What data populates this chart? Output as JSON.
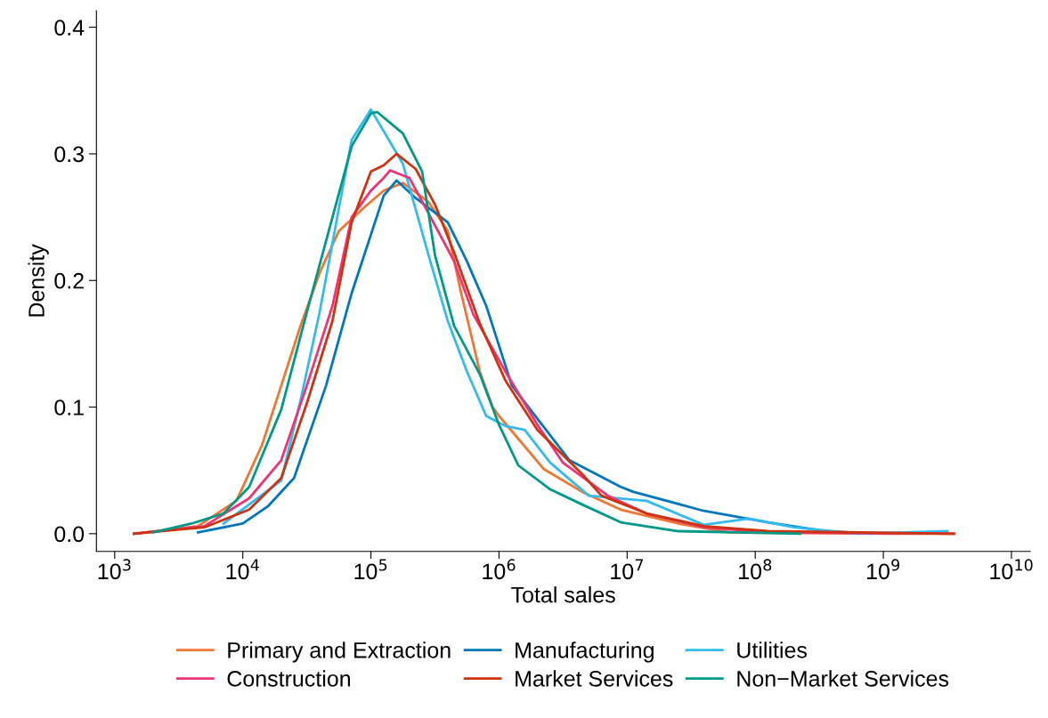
{
  "chart_data": {
    "type": "line",
    "xlabel": "Total sales",
    "ylabel": "Density",
    "log": "x",
    "xlim": [
      720,
      14000000000
    ],
    "ylim": [
      -0.014,
      0.413
    ],
    "xticks": [
      {
        "value": 1000,
        "label": "10$^{3}$"
      },
      {
        "value": 10000,
        "label": "10$^{4}$"
      },
      {
        "value": 100000,
        "label": "10$^{5}$"
      },
      {
        "value": 1000000,
        "label": "10$^{6}$"
      },
      {
        "value": 10000000,
        "label": "10$^{7}$"
      },
      {
        "value": 100000000,
        "label": "10$^{8}$"
      },
      {
        "value": 1000000000,
        "label": "10$^{9}$"
      },
      {
        "value": 10000000000,
        "label": "10$^{10}$"
      }
    ],
    "yticks": [
      {
        "value": 0,
        "label": "0.0"
      },
      0.1,
      0.2,
      0.3,
      0.4
    ],
    "grid": false,
    "legend": "bottom",
    "marker": "none",
    "line_style": "solid",
    "series": [
      {
        "name": "Primary and Extraction",
        "color": "#ee7733",
        "x": [
          1413,
          4467,
          8913,
          14130,
          19950,
          28180,
          39810,
          56230,
          89130,
          125900,
          177800,
          281800,
          398100,
          501200,
          707900,
          891300,
          1000000,
          2239000,
          4467000,
          8913000,
          25120000,
          63100000,
          1000000000,
          3548000000
        ],
        "values": [
          0,
          0.006,
          0.026,
          0.07,
          0.117,
          0.164,
          0.206,
          0.239,
          0.258,
          0.271,
          0.277,
          0.262,
          0.239,
          0.192,
          0.128,
          0.1,
          0.093,
          0.051,
          0.033,
          0.019,
          0.008,
          0.001,
          0,
          0
        ]
      },
      {
        "name": "Manufacturing",
        "color": "#0077bb",
        "x": [
          4467,
          10000,
          15850,
          25120,
          44670,
          70790,
          125900,
          158500,
          223900,
          398100,
          562300,
          794300,
          1259000,
          3548000,
          8913000,
          11220000,
          39810000,
          125900000,
          354800000,
          794300000
        ],
        "values": [
          0.001,
          0.008,
          0.022,
          0.044,
          0.117,
          0.19,
          0.267,
          0.279,
          0.265,
          0.246,
          0.215,
          0.18,
          0.117,
          0.058,
          0.037,
          0.033,
          0.018,
          0.009,
          0.002,
          0
        ]
      },
      {
        "name": "Utilities",
        "color": "#33bbee",
        "x": [
          7079,
          19950,
          28180,
          39810,
          56230,
          70790,
          100000,
          177800,
          281800,
          398100,
          562300,
          794300,
          1122000,
          1585000,
          2512000,
          5012000,
          14130000,
          39810000,
          89130000,
          199500000,
          631000000,
          3162000000
        ],
        "values": [
          0.008,
          0.042,
          0.105,
          0.175,
          0.257,
          0.311,
          0.335,
          0.292,
          0.22,
          0.168,
          0.128,
          0.093,
          0.085,
          0.082,
          0.056,
          0.03,
          0.026,
          0.007,
          0.012,
          0.005,
          0,
          0.002
        ]
      },
      {
        "name": "Construction",
        "color": "#ee3377",
        "x": [
          1413,
          5012,
          11220,
          19950,
          31620,
          50120,
          70790,
          100000,
          125900,
          141300,
          199500,
          281800,
          446700,
          631000,
          1122000,
          1995000,
          3162000,
          7079000,
          14130000,
          39810000,
          125900000,
          3548000000
        ],
        "values": [
          0,
          0.006,
          0.028,
          0.058,
          0.117,
          0.18,
          0.25,
          0.271,
          0.281,
          0.287,
          0.281,
          0.253,
          0.215,
          0.173,
          0.128,
          0.086,
          0.056,
          0.03,
          0.016,
          0.005,
          0.001,
          0
        ]
      },
      {
        "name": "Market Services",
        "color": "#cc3311",
        "x": [
          1413,
          5012,
          11220,
          19950,
          31620,
          50120,
          70790,
          100000,
          125900,
          158500,
          223900,
          316200,
          446700,
          707900,
          1122000,
          1995000,
          4467000,
          6310000,
          14130000,
          39810000,
          125900000,
          3548000000
        ],
        "values": [
          0,
          0.005,
          0.019,
          0.044,
          0.103,
          0.168,
          0.246,
          0.286,
          0.291,
          0.3,
          0.288,
          0.26,
          0.222,
          0.166,
          0.121,
          0.082,
          0.047,
          0.03,
          0.016,
          0.006,
          0.002,
          0
        ]
      },
      {
        "name": "Non−Market Services",
        "color": "#009988",
        "x": [
          1995,
          3981,
          7079,
          11220,
          19950,
          31620,
          50120,
          70790,
          100000,
          112200,
          177800,
          251200,
          316200,
          446700,
          707900,
          1000000,
          1413000,
          2512000,
          4467000,
          8913000,
          25120000,
          223900000
        ],
        "values": [
          0.001,
          0.008,
          0.016,
          0.037,
          0.098,
          0.175,
          0.25,
          0.306,
          0.332,
          0.333,
          0.316,
          0.286,
          0.22,
          0.164,
          0.126,
          0.086,
          0.054,
          0.035,
          0.023,
          0.009,
          0.002,
          0
        ]
      }
    ]
  }
}
